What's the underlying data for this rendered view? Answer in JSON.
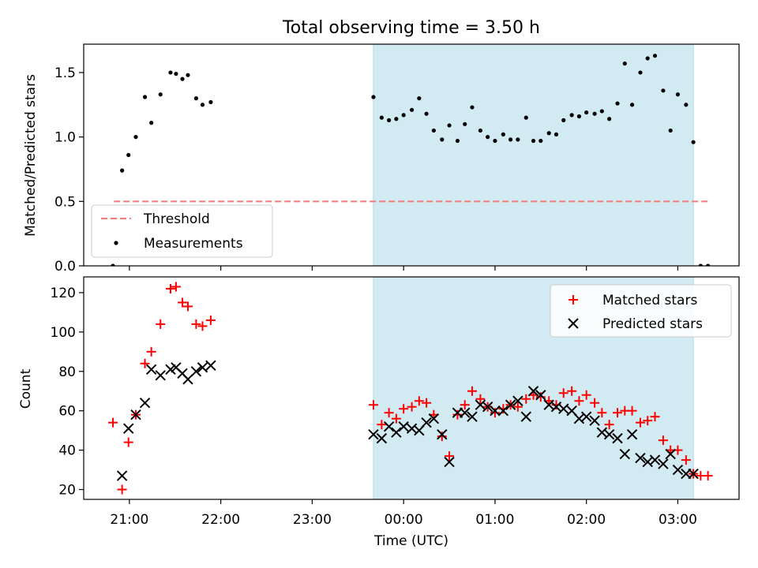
{
  "title": "Total observing time = 3.50 h",
  "colors": {
    "observing_shade": "#add8e6",
    "threshold": "#f08080",
    "measurements": "#000000",
    "matched": "#ff0000",
    "predicted": "#000000"
  },
  "chart_data": [
    {
      "type": "scatter",
      "ylabel": "Matched/Predicted stars",
      "ylim": [
        0,
        1.72
      ],
      "yticks": [
        0.0,
        0.5,
        1.0,
        1.5
      ],
      "ytick_labels": [
        "0.0",
        "0.5",
        "1.0",
        "1.5"
      ],
      "xlim_hours": [
        20.5,
        27.67
      ],
      "shaded_interval_hours": [
        23.67,
        27.17
      ],
      "legend": {
        "placement": "lower-left",
        "entries": [
          "Threshold",
          "Measurements"
        ]
      },
      "threshold": {
        "name": "Threshold",
        "value": 0.5,
        "x_range_hours": [
          20.83,
          27.33
        ]
      },
      "series": [
        {
          "name": "Measurements",
          "x_hours": [
            20.82,
            20.92,
            20.99,
            21.07,
            21.17,
            21.24,
            21.34,
            21.45,
            21.51,
            21.58,
            21.64,
            21.73,
            21.8,
            21.89,
            23.67,
            23.76,
            23.84,
            23.92,
            24.0,
            24.09,
            24.17,
            24.25,
            24.33,
            24.42,
            24.5,
            24.59,
            24.67,
            24.75,
            24.84,
            24.92,
            25.0,
            25.09,
            25.17,
            25.25,
            25.34,
            25.42,
            25.5,
            25.59,
            25.67,
            25.75,
            25.84,
            25.92,
            26.0,
            26.09,
            26.17,
            26.25,
            26.34,
            26.42,
            26.5,
            26.59,
            26.67,
            26.75,
            26.84,
            26.92,
            27.0,
            27.09,
            27.17,
            27.25,
            27.33
          ],
          "y": [
            0.0,
            0.74,
            0.86,
            1.0,
            1.31,
            1.11,
            1.33,
            1.5,
            1.49,
            1.45,
            1.48,
            1.3,
            1.25,
            1.27,
            1.31,
            1.15,
            1.13,
            1.14,
            1.17,
            1.21,
            1.3,
            1.18,
            1.05,
            0.98,
            1.09,
            0.97,
            1.1,
            1.23,
            1.05,
            1.0,
            0.97,
            1.02,
            0.98,
            0.98,
            1.15,
            0.97,
            0.97,
            1.03,
            1.02,
            1.13,
            1.17,
            1.16,
            1.19,
            1.18,
            1.2,
            1.14,
            1.26,
            1.57,
            1.25,
            1.5,
            1.61,
            1.63,
            1.36,
            1.05,
            1.33,
            1.25,
            0.96,
            0.0,
            0.0
          ]
        }
      ]
    },
    {
      "type": "scatter",
      "ylabel": "Count",
      "xlabel": "Time (UTC)",
      "ylim": [
        15,
        128
      ],
      "yticks": [
        20,
        40,
        60,
        80,
        100,
        120
      ],
      "ytick_labels": [
        "20",
        "40",
        "60",
        "80",
        "100",
        "120"
      ],
      "xticks_hours": [
        21,
        22,
        23,
        24,
        25,
        26,
        27
      ],
      "xtick_labels": [
        "21:00",
        "22:00",
        "23:00",
        "00:00",
        "01:00",
        "02:00",
        "03:00"
      ],
      "xlim_hours": [
        20.5,
        27.67
      ],
      "shaded_interval_hours": [
        23.67,
        27.17
      ],
      "legend": {
        "placement": "top-right",
        "entries": [
          "Matched stars",
          "Predicted stars"
        ]
      },
      "series": [
        {
          "name": "Matched stars",
          "marker": "plus",
          "x_hours": [
            20.82,
            20.92,
            20.99,
            21.07,
            21.17,
            21.24,
            21.34,
            21.45,
            21.51,
            21.58,
            21.64,
            21.73,
            21.8,
            21.89,
            23.67,
            23.76,
            23.84,
            23.92,
            24.0,
            24.09,
            24.17,
            24.25,
            24.33,
            24.42,
            24.5,
            24.59,
            24.67,
            24.75,
            24.84,
            24.92,
            25.0,
            25.09,
            25.17,
            25.25,
            25.34,
            25.42,
            25.5,
            25.59,
            25.67,
            25.75,
            25.84,
            25.92,
            26.0,
            26.09,
            26.17,
            26.25,
            26.34,
            26.42,
            26.5,
            26.59,
            26.67,
            26.75,
            26.84,
            26.92,
            27.0,
            27.09,
            27.17,
            27.25,
            27.33
          ],
          "y": [
            54,
            20,
            44,
            58,
            84,
            90,
            104,
            122,
            123,
            115,
            113,
            104,
            103,
            106,
            63,
            53,
            59,
            56,
            61,
            62,
            65,
            64,
            58,
            47,
            37,
            58,
            63,
            70,
            66,
            62,
            59,
            61,
            63,
            62,
            66,
            68,
            67,
            65,
            63,
            69,
            70,
            65,
            68,
            64,
            59,
            53,
            59,
            60,
            60,
            54,
            55,
            57,
            45,
            40,
            40,
            35,
            28,
            27,
            27
          ]
        },
        {
          "name": "Predicted stars",
          "marker": "x",
          "x_hours": [
            20.92,
            20.99,
            21.07,
            21.17,
            21.24,
            21.34,
            21.45,
            21.51,
            21.58,
            21.64,
            21.73,
            21.8,
            21.89,
            23.67,
            23.76,
            23.84,
            23.92,
            24.0,
            24.09,
            24.17,
            24.25,
            24.33,
            24.42,
            24.5,
            24.59,
            24.67,
            24.75,
            24.84,
            24.92,
            25.0,
            25.09,
            25.17,
            25.25,
            25.34,
            25.42,
            25.5,
            25.59,
            25.67,
            25.75,
            25.84,
            25.92,
            26.0,
            26.09,
            26.17,
            26.25,
            26.34,
            26.42,
            26.5,
            26.59,
            26.67,
            26.75,
            26.84,
            26.92,
            27.0,
            27.09,
            27.17
          ],
          "y": [
            27,
            51,
            58,
            64,
            81,
            78,
            81,
            82,
            79,
            76,
            80,
            82,
            83,
            48,
            46,
            52,
            49,
            52,
            51,
            50,
            54,
            56,
            48,
            34,
            59,
            59,
            57,
            63,
            62,
            60,
            60,
            63,
            65,
            57,
            70,
            68,
            63,
            62,
            61,
            60,
            56,
            57,
            55,
            49,
            48,
            46,
            38,
            48,
            36,
            34,
            35,
            33,
            38,
            30,
            28,
            28
          ]
        }
      ]
    }
  ]
}
